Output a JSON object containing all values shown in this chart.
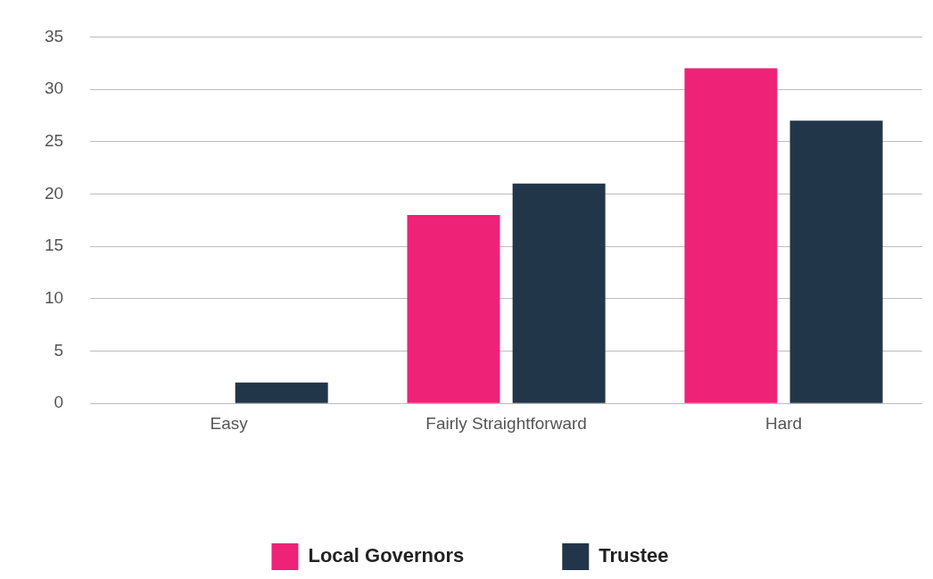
{
  "chart_data": {
    "type": "bar",
    "categories": [
      "Easy",
      "Fairly Straightforward",
      "Hard"
    ],
    "series": [
      {
        "name": "Local Governors",
        "color": "#ee2277",
        "values": [
          0,
          18,
          32
        ]
      },
      {
        "name": "Trustee",
        "color": "#22364a",
        "values": [
          2,
          21,
          27
        ]
      }
    ],
    "ylim": [
      0,
      35
    ],
    "yticks": [
      0,
      5,
      10,
      15,
      20,
      25,
      30,
      35
    ],
    "grid": "y",
    "legend": "bottom"
  }
}
